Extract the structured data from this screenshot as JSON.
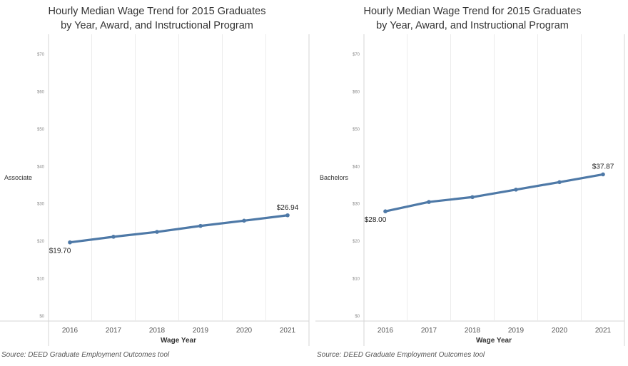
{
  "source": "Source: DEED Graduate Employment Outcomes tool",
  "chart_data": [
    {
      "type": "line",
      "title": "Hourly Median Wage Trend for 2015 Graduates by Year, Award, and Instructional Program",
      "title_lines": [
        "Hourly Median Wage Trend for 2015 Graduates",
        "by Year, Award, and Instructional Program"
      ],
      "row_label": "Associate",
      "xlabel": "Wage Year",
      "ylabel": "",
      "x": [
        "2016",
        "2017",
        "2018",
        "2019",
        "2020",
        "2021"
      ],
      "series": [
        {
          "values": [
            19.7,
            21.2,
            22.5,
            24.1,
            25.5,
            26.94
          ],
          "color": "#4e79a7"
        }
      ],
      "labeled_points": [
        {
          "index": 0,
          "text": "$19.70",
          "position": "below-left"
        },
        {
          "index": 5,
          "text": "$26.94",
          "position": "above"
        }
      ],
      "ylim": [
        0,
        70
      ],
      "yticks": [
        "$0",
        "$10",
        "$20",
        "$30",
        "$40",
        "$50",
        "$60",
        "$70"
      ],
      "grid": "vertical"
    },
    {
      "type": "line",
      "title": "Hourly Median Wage Trend for 2015 Graduates by Year, Award, and Instructional Program",
      "title_lines": [
        "Hourly Median Wage Trend for 2015 Graduates",
        "by Year, Award, and Instructional Program"
      ],
      "row_label": "Bachelors",
      "xlabel": "Wage Year",
      "ylabel": "",
      "x": [
        "2016",
        "2017",
        "2018",
        "2019",
        "2020",
        "2021"
      ],
      "series": [
        {
          "values": [
            28.0,
            30.5,
            31.8,
            33.8,
            35.8,
            37.87
          ],
          "color": "#4e79a7"
        }
      ],
      "labeled_points": [
        {
          "index": 0,
          "text": "$28.00",
          "position": "below-left"
        },
        {
          "index": 5,
          "text": "$37.87",
          "position": "above"
        }
      ],
      "ylim": [
        0,
        70
      ],
      "yticks": [
        "$0",
        "$10",
        "$20",
        "$30",
        "$40",
        "$50",
        "$60",
        "$70"
      ],
      "grid": "vertical"
    }
  ]
}
